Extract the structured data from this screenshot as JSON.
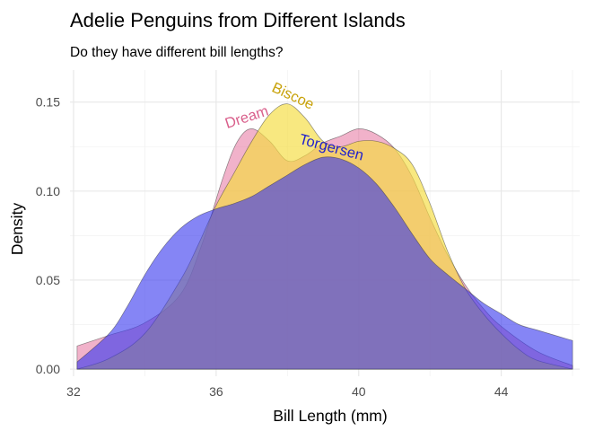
{
  "chart_data": {
    "type": "area",
    "title": "Adelie Penguins from Different Islands",
    "subtitle": "Do they have different bill lengths?",
    "xlabel": "Bill Length (mm)",
    "ylabel": "Density",
    "xlim": [
      31.9,
      46.2
    ],
    "ylim": [
      -0.004,
      0.168
    ],
    "x_ticks": [
      32,
      36,
      40,
      44
    ],
    "y_ticks": [
      0.0,
      0.05,
      0.1,
      0.15
    ],
    "x_tick_labels": [
      "32",
      "36",
      "40",
      "44"
    ],
    "y_tick_labels": [
      "0.00",
      "0.05",
      "0.10",
      "0.15"
    ],
    "grid": true,
    "legend": "none (labels placed on curves)",
    "series": [
      {
        "name": "Dream",
        "color": "#e6739f",
        "fill_opacity": 0.55,
        "x": [
          32.1,
          33.0,
          34.0,
          35.0,
          35.6,
          36.2,
          36.6,
          37.0,
          37.5,
          38.0,
          38.5,
          39.0,
          39.5,
          40.0,
          40.5,
          41.0,
          41.5,
          42.0,
          42.5,
          43.0,
          43.5,
          44.0,
          45.0,
          46.0
        ],
        "y": [
          0.013,
          0.019,
          0.026,
          0.042,
          0.07,
          0.108,
          0.128,
          0.135,
          0.128,
          0.117,
          0.12,
          0.127,
          0.131,
          0.135,
          0.132,
          0.124,
          0.108,
          0.085,
          0.064,
          0.047,
          0.034,
          0.024,
          0.01,
          0.002
        ]
      },
      {
        "name": "Biscoe",
        "color": "#f5dc3c",
        "fill_opacity": 0.65,
        "x": [
          32.1,
          33.0,
          34.0,
          35.0,
          35.5,
          36.0,
          36.5,
          37.0,
          37.5,
          38.0,
          38.5,
          39.0,
          39.5,
          40.0,
          40.5,
          41.0,
          41.5,
          42.0,
          42.5,
          43.0,
          43.5,
          44.0,
          44.5,
          45.0,
          46.0
        ],
        "y": [
          0.0,
          0.006,
          0.02,
          0.05,
          0.07,
          0.092,
          0.11,
          0.128,
          0.143,
          0.149,
          0.141,
          0.128,
          0.125,
          0.128,
          0.128,
          0.124,
          0.115,
          0.093,
          0.066,
          0.045,
          0.031,
          0.02,
          0.011,
          0.005,
          0.0
        ]
      },
      {
        "name": "Torgersen",
        "color": "#3333ee",
        "fill_opacity": 0.6,
        "x": [
          32.1,
          33.0,
          33.5,
          34.0,
          34.5,
          35.0,
          35.5,
          36.0,
          36.5,
          37.0,
          37.5,
          38.0,
          38.5,
          39.0,
          39.5,
          40.0,
          40.5,
          41.0,
          41.5,
          42.0,
          42.5,
          43.0,
          43.5,
          44.0,
          44.5,
          45.0,
          46.0
        ],
        "y": [
          0.004,
          0.02,
          0.035,
          0.053,
          0.068,
          0.079,
          0.086,
          0.09,
          0.093,
          0.097,
          0.103,
          0.109,
          0.115,
          0.119,
          0.118,
          0.113,
          0.104,
          0.091,
          0.076,
          0.062,
          0.053,
          0.045,
          0.037,
          0.031,
          0.025,
          0.022,
          0.016
        ]
      }
    ]
  }
}
